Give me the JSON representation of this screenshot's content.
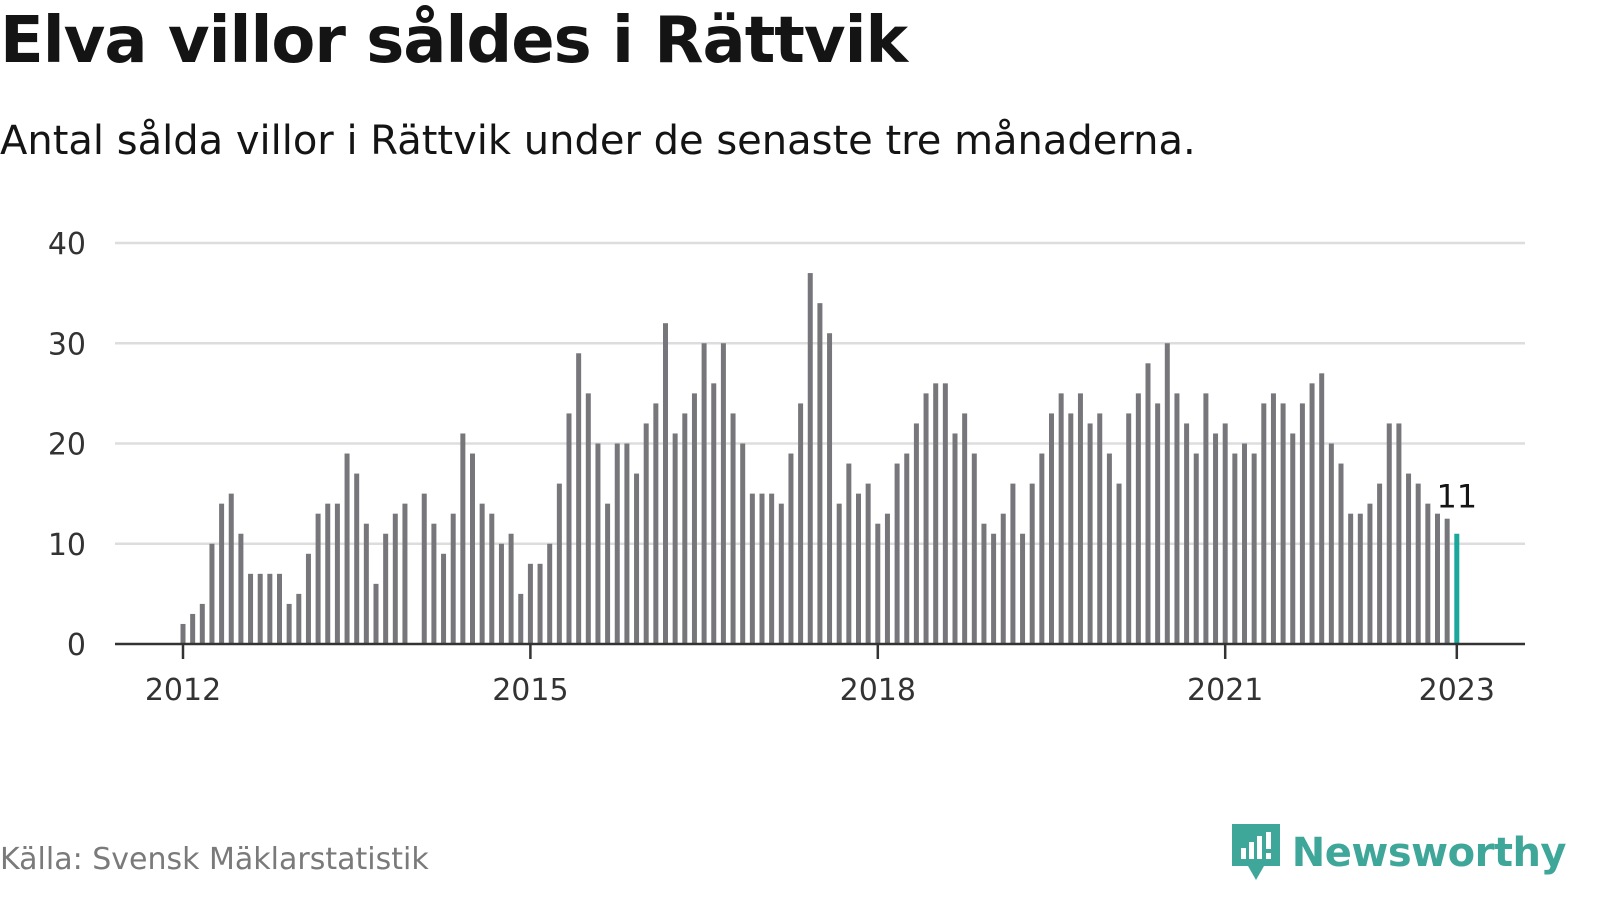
{
  "title": "Elva villor såldes i Rättvik",
  "subtitle": "Antal sålda villor i Rättvik under de senaste tre månaderna.",
  "source": "Källa: Svensk Mäklarstatistik",
  "brand": {
    "name": "Newsworthy",
    "icon": "newsworthy-logo-icon",
    "color": "#3fa69a"
  },
  "colors": {
    "bar": "#77777b",
    "highlight": "#1aa89c",
    "grid": "#dddddd",
    "axis": "#333333"
  },
  "chart_data": {
    "type": "bar",
    "title": "",
    "xlabel": "",
    "ylabel": "",
    "ylim": [
      0,
      40
    ],
    "yticks": [
      0,
      10,
      20,
      30,
      40
    ],
    "xticks": [
      {
        "label": "2012",
        "index": 0
      },
      {
        "label": "2015",
        "index": 36
      },
      {
        "label": "2018",
        "index": 72
      },
      {
        "label": "2021",
        "index": 108
      },
      {
        "label": "2023",
        "index": 132
      }
    ],
    "grid": true,
    "legend": "none",
    "highlight_label": "11",
    "series": [
      {
        "values": [
          2,
          3,
          4,
          10,
          14,
          15,
          11,
          7,
          7,
          7,
          7,
          4,
          5,
          9,
          13,
          14,
          14,
          19,
          17,
          12,
          6,
          11,
          13,
          14,
          0,
          15,
          12,
          9,
          13,
          21,
          19,
          14,
          13,
          10,
          11,
          5,
          8,
          8,
          10,
          16,
          23,
          29,
          25,
          20,
          14,
          20,
          20,
          17,
          22,
          24,
          32,
          21,
          23,
          25,
          30,
          26,
          30,
          23,
          20,
          15,
          15,
          15,
          14,
          19,
          24,
          37,
          34,
          31,
          14,
          18,
          15,
          16,
          12,
          13,
          18,
          19,
          22,
          25,
          26,
          26,
          21,
          23,
          19,
          12,
          11,
          13,
          16,
          11,
          16,
          19,
          23,
          25,
          23,
          25,
          22,
          23,
          19,
          16,
          23,
          25,
          28,
          24,
          30,
          25,
          22,
          19,
          25,
          21,
          22,
          19,
          20,
          19,
          24,
          25,
          24,
          21,
          24,
          26,
          27,
          20,
          18,
          13,
          13,
          14,
          16,
          22,
          22,
          17,
          16,
          14,
          13,
          12.5,
          11
        ]
      }
    ]
  }
}
